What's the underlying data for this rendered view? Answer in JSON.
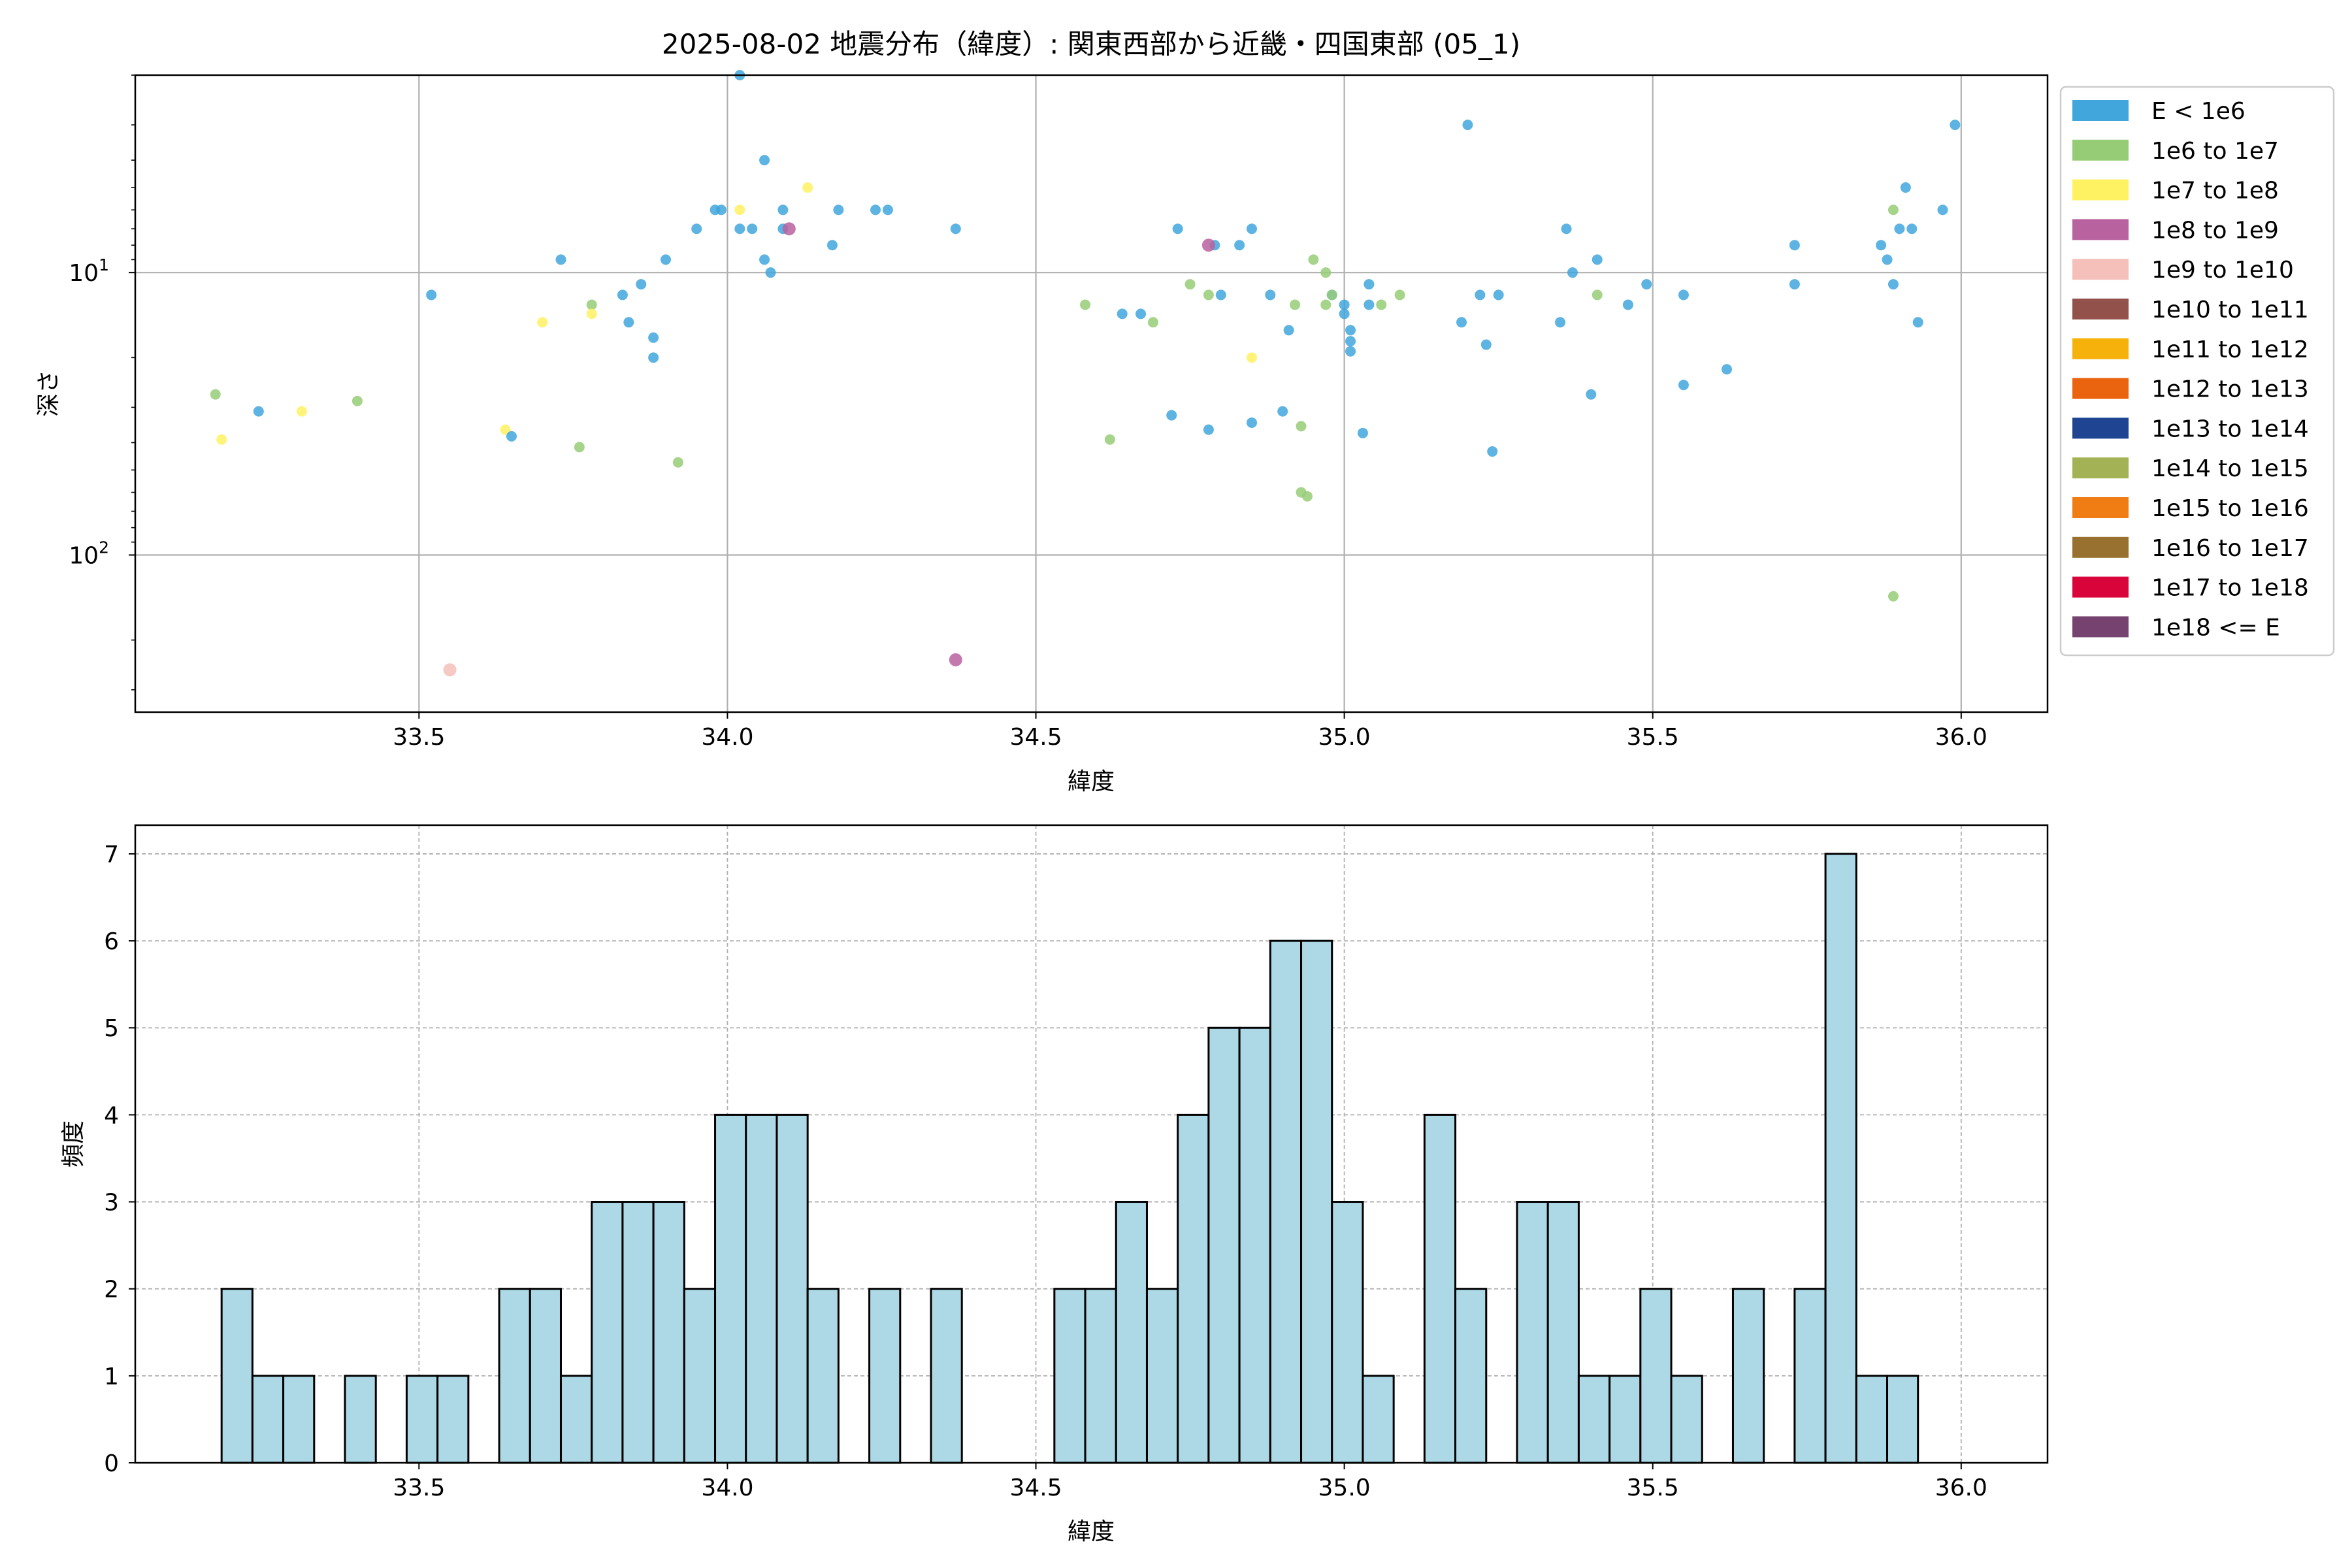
{
  "chart_data": [
    {
      "type": "scatter",
      "title": "2025-08-02 地震分布（緯度）: 関東西部から近畿・四国東部 (05_1)",
      "xlabel": "緯度",
      "ylabel": "深さ",
      "xlim": [
        33.04,
        36.14
      ],
      "yscale": "log",
      "yinverted": true,
      "ylim": [
        2,
        360
      ],
      "xticks": [
        "33.5",
        "34.0",
        "34.5",
        "35.0",
        "35.5",
        "36.0"
      ],
      "yticks": [
        {
          "value": 10,
          "base": "10",
          "exp": "1"
        },
        {
          "value": 100,
          "base": "10",
          "exp": "2"
        }
      ],
      "grid": true,
      "legend_position": "outside-right",
      "legend": [
        {
          "label": "E < 1e6",
          "color": "#41a6dc"
        },
        {
          "label": "1e6 to 1e7",
          "color": "#97cc77"
        },
        {
          "label": "1e7 to 1e8",
          "color": "#fff262"
        },
        {
          "label": "1e8 to 1e9",
          "color": "#b8629f"
        },
        {
          "label": "1e9 to 1e10",
          "color": "#f5c0ba"
        },
        {
          "label": "1e10 to 1e11",
          "color": "#93514c"
        },
        {
          "label": "1e11 to 1e12",
          "color": "#f7b10b"
        },
        {
          "label": "1e12 to 1e13",
          "color": "#ea6410"
        },
        {
          "label": "1e13 to 1e14",
          "color": "#1f4592"
        },
        {
          "label": "1e14 to 1e15",
          "color": "#a2b254"
        },
        {
          "label": "1e15 to 1e16",
          "color": "#f07c14"
        },
        {
          "label": "1e16 to 1e17",
          "color": "#98702f"
        },
        {
          "label": "1e17 to 1e18",
          "color": "#d9053a"
        },
        {
          "label": "1e18 <= E",
          "color": "#764270"
        }
      ],
      "points": [
        {
          "x": 34.02,
          "y": 2.0,
          "c": 0
        },
        {
          "x": 35.99,
          "y": 3.0,
          "c": 0
        },
        {
          "x": 35.2,
          "y": 3.0,
          "c": 0
        },
        {
          "x": 34.06,
          "y": 4.0,
          "c": 0
        },
        {
          "x": 35.91,
          "y": 5.0,
          "c": 0
        },
        {
          "x": 34.13,
          "y": 5.0,
          "c": 2
        },
        {
          "x": 34.24,
          "y": 6.0,
          "c": 0
        },
        {
          "x": 34.26,
          "y": 6.0,
          "c": 0
        },
        {
          "x": 34.18,
          "y": 6.0,
          "c": 0
        },
        {
          "x": 35.97,
          "y": 6.0,
          "c": 0
        },
        {
          "x": 35.89,
          "y": 6.0,
          "c": 1
        },
        {
          "x": 33.98,
          "y": 6.0,
          "c": 0
        },
        {
          "x": 33.99,
          "y": 6.0,
          "c": 0
        },
        {
          "x": 34.02,
          "y": 6.0,
          "c": 2
        },
        {
          "x": 34.09,
          "y": 6.0,
          "c": 0
        },
        {
          "x": 33.95,
          "y": 7.0,
          "c": 0
        },
        {
          "x": 34.02,
          "y": 7.0,
          "c": 0
        },
        {
          "x": 34.04,
          "y": 7.0,
          "c": 0
        },
        {
          "x": 34.09,
          "y": 7.0,
          "c": 0
        },
        {
          "x": 34.37,
          "y": 7.0,
          "c": 0
        },
        {
          "x": 34.1,
          "y": 7.0,
          "c": 3
        },
        {
          "x": 34.73,
          "y": 7.0,
          "c": 0
        },
        {
          "x": 34.85,
          "y": 7.0,
          "c": 0
        },
        {
          "x": 35.36,
          "y": 7.0,
          "c": 0
        },
        {
          "x": 35.9,
          "y": 7.0,
          "c": 0
        },
        {
          "x": 35.92,
          "y": 7.0,
          "c": 0
        },
        {
          "x": 34.17,
          "y": 8.0,
          "c": 0
        },
        {
          "x": 34.79,
          "y": 8.0,
          "c": 0
        },
        {
          "x": 34.83,
          "y": 8.0,
          "c": 0
        },
        {
          "x": 34.78,
          "y": 8.0,
          "c": 3
        },
        {
          "x": 35.73,
          "y": 8.0,
          "c": 0
        },
        {
          "x": 35.87,
          "y": 8.0,
          "c": 0
        },
        {
          "x": 34.06,
          "y": 9.0,
          "c": 0
        },
        {
          "x": 33.73,
          "y": 9.0,
          "c": 0
        },
        {
          "x": 33.9,
          "y": 9.0,
          "c": 0
        },
        {
          "x": 34.95,
          "y": 9.0,
          "c": 1
        },
        {
          "x": 35.41,
          "y": 9.0,
          "c": 0
        },
        {
          "x": 35.88,
          "y": 9.0,
          "c": 0
        },
        {
          "x": 34.07,
          "y": 10.0,
          "c": 0
        },
        {
          "x": 34.97,
          "y": 10.0,
          "c": 1
        },
        {
          "x": 35.37,
          "y": 10.0,
          "c": 0
        },
        {
          "x": 34.75,
          "y": 11.0,
          "c": 1
        },
        {
          "x": 33.86,
          "y": 11.0,
          "c": 0
        },
        {
          "x": 35.04,
          "y": 11.0,
          "c": 0
        },
        {
          "x": 35.49,
          "y": 11.0,
          "c": 0
        },
        {
          "x": 35.73,
          "y": 11.0,
          "c": 0
        },
        {
          "x": 35.89,
          "y": 11.0,
          "c": 0
        },
        {
          "x": 33.52,
          "y": 12.0,
          "c": 0
        },
        {
          "x": 33.83,
          "y": 12.0,
          "c": 0
        },
        {
          "x": 34.78,
          "y": 12.0,
          "c": 1
        },
        {
          "x": 34.8,
          "y": 12.0,
          "c": 0
        },
        {
          "x": 34.88,
          "y": 12.0,
          "c": 0
        },
        {
          "x": 34.98,
          "y": 12.0,
          "c": 0
        },
        {
          "x": 34.98,
          "y": 12.0,
          "c": 1
        },
        {
          "x": 35.09,
          "y": 12.0,
          "c": 1
        },
        {
          "x": 35.22,
          "y": 12.0,
          "c": 0
        },
        {
          "x": 35.25,
          "y": 12.0,
          "c": 0
        },
        {
          "x": 35.41,
          "y": 12.0,
          "c": 1
        },
        {
          "x": 35.55,
          "y": 12.0,
          "c": 0
        },
        {
          "x": 33.78,
          "y": 13.0,
          "c": 1
        },
        {
          "x": 34.58,
          "y": 13.0,
          "c": 1
        },
        {
          "x": 34.92,
          "y": 13.0,
          "c": 1
        },
        {
          "x": 34.97,
          "y": 13.0,
          "c": 1
        },
        {
          "x": 35.0,
          "y": 13.0,
          "c": 0
        },
        {
          "x": 35.04,
          "y": 13.0,
          "c": 0
        },
        {
          "x": 35.06,
          "y": 13.0,
          "c": 1
        },
        {
          "x": 35.46,
          "y": 13.0,
          "c": 0
        },
        {
          "x": 33.78,
          "y": 14.0,
          "c": 2
        },
        {
          "x": 34.64,
          "y": 14.0,
          "c": 0
        },
        {
          "x": 34.67,
          "y": 14.0,
          "c": 0
        },
        {
          "x": 35.0,
          "y": 14.0,
          "c": 0
        },
        {
          "x": 33.7,
          "y": 15.0,
          "c": 2
        },
        {
          "x": 33.84,
          "y": 15.0,
          "c": 0
        },
        {
          "x": 34.69,
          "y": 15.0,
          "c": 1
        },
        {
          "x": 35.19,
          "y": 15.0,
          "c": 0
        },
        {
          "x": 35.35,
          "y": 15.0,
          "c": 0
        },
        {
          "x": 35.93,
          "y": 15.0,
          "c": 0
        },
        {
          "x": 34.91,
          "y": 16.0,
          "c": 0
        },
        {
          "x": 35.01,
          "y": 16.0,
          "c": 0
        },
        {
          "x": 33.88,
          "y": 17.0,
          "c": 0
        },
        {
          "x": 35.01,
          "y": 17.5,
          "c": 0
        },
        {
          "x": 35.23,
          "y": 18.0,
          "c": 0
        },
        {
          "x": 35.01,
          "y": 19.0,
          "c": 0
        },
        {
          "x": 33.88,
          "y": 20.0,
          "c": 0
        },
        {
          "x": 34.85,
          "y": 20.0,
          "c": 2
        },
        {
          "x": 35.62,
          "y": 22.0,
          "c": 0
        },
        {
          "x": 35.55,
          "y": 25.0,
          "c": 0
        },
        {
          "x": 33.17,
          "y": 27.0,
          "c": 1
        },
        {
          "x": 33.4,
          "y": 28.5,
          "c": 1
        },
        {
          "x": 35.4,
          "y": 27.0,
          "c": 0
        },
        {
          "x": 33.24,
          "y": 31.0,
          "c": 0
        },
        {
          "x": 33.31,
          "y": 31.0,
          "c": 2
        },
        {
          "x": 34.9,
          "y": 31.0,
          "c": 0
        },
        {
          "x": 34.72,
          "y": 32.0,
          "c": 0
        },
        {
          "x": 34.85,
          "y": 34.0,
          "c": 0
        },
        {
          "x": 34.93,
          "y": 35.0,
          "c": 1
        },
        {
          "x": 34.78,
          "y": 36.0,
          "c": 0
        },
        {
          "x": 33.64,
          "y": 36.0,
          "c": 2
        },
        {
          "x": 33.18,
          "y": 39.0,
          "c": 2
        },
        {
          "x": 33.65,
          "y": 38.0,
          "c": 0
        },
        {
          "x": 34.62,
          "y": 39.0,
          "c": 1
        },
        {
          "x": 35.03,
          "y": 37.0,
          "c": 0
        },
        {
          "x": 33.76,
          "y": 41.5,
          "c": 1
        },
        {
          "x": 35.24,
          "y": 43.0,
          "c": 0
        },
        {
          "x": 33.92,
          "y": 47.0,
          "c": 1
        },
        {
          "x": 34.93,
          "y": 60.0,
          "c": 1
        },
        {
          "x": 34.94,
          "y": 62.0,
          "c": 1
        },
        {
          "x": 35.89,
          "y": 140.0,
          "c": 1
        },
        {
          "x": 34.37,
          "y": 235.0,
          "c": 3
        },
        {
          "x": 33.55,
          "y": 255.0,
          "c": 4
        }
      ]
    },
    {
      "type": "bar",
      "xlabel": "緯度",
      "ylabel": "頻度",
      "xlim": [
        33.04,
        36.14
      ],
      "ylim": [
        0,
        7.33
      ],
      "xticks": [
        "33.5",
        "34.0",
        "34.5",
        "35.0",
        "35.5",
        "36.0"
      ],
      "yticks": [
        "0",
        "1",
        "2",
        "3",
        "4",
        "5",
        "6",
        "7"
      ],
      "grid": true,
      "bar_color": "#add8e6",
      "edge_color": "#000000",
      "bin_start": 33.18,
      "bin_width": 0.05,
      "values": [
        2,
        1,
        1,
        0,
        1,
        0,
        1,
        1,
        0,
        2,
        2,
        1,
        3,
        3,
        3,
        2,
        4,
        4,
        4,
        2,
        0,
        2,
        0,
        2,
        0,
        0,
        0,
        2,
        2,
        3,
        2,
        4,
        5,
        5,
        6,
        6,
        3,
        1,
        0,
        4,
        2,
        0,
        3,
        3,
        1,
        1,
        2,
        1,
        0,
        2,
        0,
        2,
        7,
        1,
        1
      ]
    }
  ]
}
